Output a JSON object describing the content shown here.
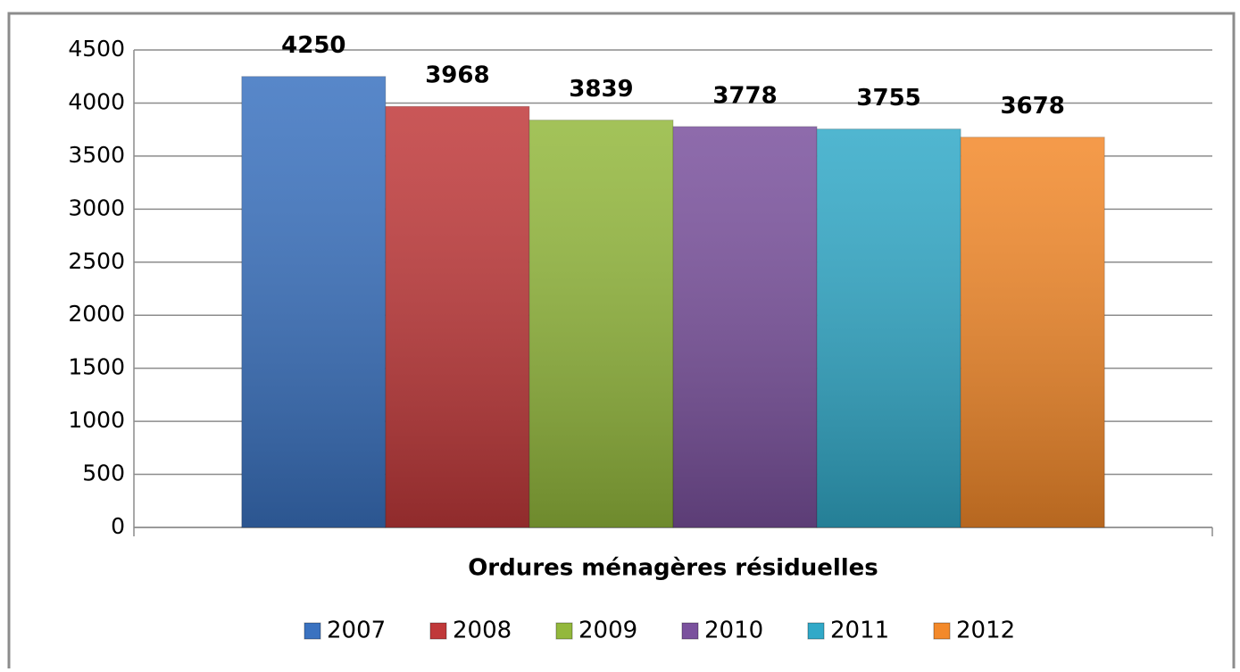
{
  "chart_data": {
    "type": "bar",
    "categories": [
      "Ordures ménagères résiduelles"
    ],
    "series": [
      {
        "name": "2007",
        "color": "#3a72c0",
        "values": [
          4250
        ]
      },
      {
        "name": "2008",
        "color": "#c0393a",
        "values": [
          3968
        ]
      },
      {
        "name": "2009",
        "color": "#93b83c",
        "values": [
          3839
        ]
      },
      {
        "name": "2010",
        "color": "#7a519d",
        "values": [
          3778
        ]
      },
      {
        "name": "2011",
        "color": "#31a9c8",
        "values": [
          3755
        ]
      },
      {
        "name": "2012",
        "color": "#f3892a",
        "values": [
          3678
        ]
      }
    ],
    "ylim": [
      0,
      4500
    ],
    "yticks": [
      0,
      500,
      1000,
      1500,
      2000,
      2500,
      3000,
      3500,
      4000,
      4500
    ],
    "grid": true,
    "legend": "bottom"
  }
}
